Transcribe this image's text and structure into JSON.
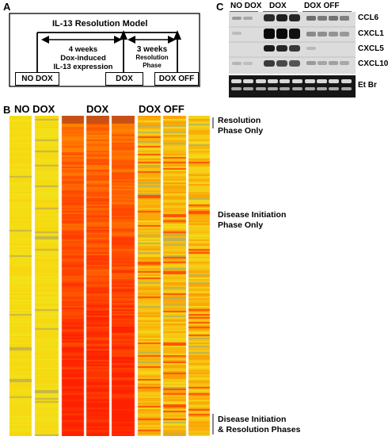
{
  "panels": {
    "a": {
      "letter": "A",
      "model_title": "IL-13 Resolution Model",
      "arrow1_text": [
        "4 weeks",
        "Dox-induced",
        "IL-13 expression"
      ],
      "arrow2_text": [
        "3 weeks",
        "Resolution",
        "Phase"
      ],
      "box_no_dox": "NO DOX",
      "box_dox": "DOX",
      "box_dox_off": "DOX OFF"
    },
    "b": {
      "letter": "B",
      "group_no_dox": "NO DOX",
      "group_dox": "DOX",
      "group_dox_off": "DOX OFF",
      "bracket_resolution": [
        "Resolution",
        "Phase Only"
      ],
      "label_disease_initiation": [
        "Disease Initiation",
        "Phase Only"
      ],
      "bracket_both": [
        "Disease Initiation",
        "& Resolution Phases"
      ]
    },
    "c": {
      "letter": "C",
      "group_no_dox": "NO DOX",
      "group_dox": "DOX",
      "group_dox_off": "DOX OFF",
      "genes": [
        "CCL6",
        "CXCL1",
        "CXCL5",
        "CXCL10"
      ],
      "loading_label": "Et Br"
    }
  },
  "colors": {
    "heatmap_yellow": "#f2e21a",
    "heatmap_orange": "#ff8c00",
    "heatmap_red": "#ff2000",
    "gel_background": "#d9d9d9",
    "etbr_background": "#1a1a1a"
  }
}
